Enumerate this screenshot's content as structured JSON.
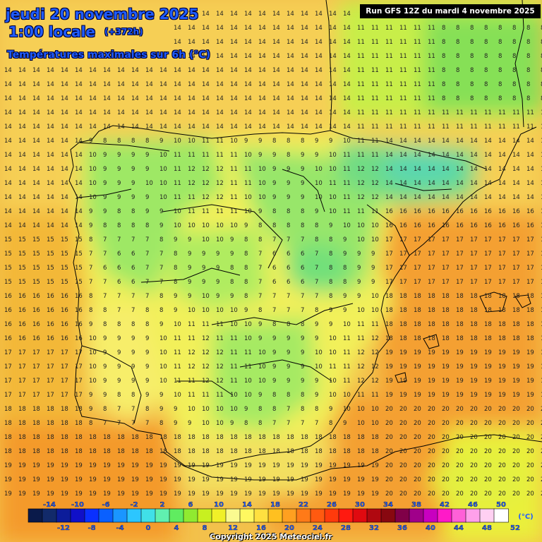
{
  "header": {
    "date": "jeudi 20 novembre 2025",
    "time": "1:00 locale",
    "lead": "(+372h)",
    "subtitle": "Températures maximales sur 6h (°C)",
    "run": "Run GFS 12Z du mardi 4 novembre 2025"
  },
  "legend": {
    "unit": "(°C)",
    "labels_top": [
      "-14",
      "-10",
      "-6",
      "-2",
      "2",
      "6",
      "10",
      "14",
      "18",
      "22",
      "26",
      "30",
      "34",
      "38",
      "42",
      "46",
      "50"
    ],
    "labels_bottom": [
      "-12",
      "-8",
      "-4",
      "0",
      "4",
      "8",
      "12",
      "16",
      "20",
      "24",
      "28",
      "32",
      "36",
      "40",
      "44",
      "48",
      "52"
    ],
    "colors": [
      "#0a1a4a",
      "#122a6a",
      "#0c1c9a",
      "#1010c8",
      "#0a30ff",
      "#0a60ff",
      "#1a96ff",
      "#2cc6ff",
      "#40e0e8",
      "#60f0b0",
      "#60ec60",
      "#90ea30",
      "#c8f020",
      "#f0f028",
      "#fafa90",
      "#fff860",
      "#ffe040",
      "#ffc020",
      "#ffa020",
      "#ff7a18",
      "#ff5a10",
      "#ff3a0c",
      "#ff1a10",
      "#e00a10",
      "#b00810",
      "#880810",
      "#800048",
      "#a0008a",
      "#c800c0",
      "#ff1ac8",
      "#ff60d8",
      "#ffa0ea",
      "#ffd0f2",
      "#ffffff"
    ]
  },
  "copyright": "Copyright 2025 Meteociel.fr",
  "icons": [
    "coastline-borders-overlay"
  ]
}
